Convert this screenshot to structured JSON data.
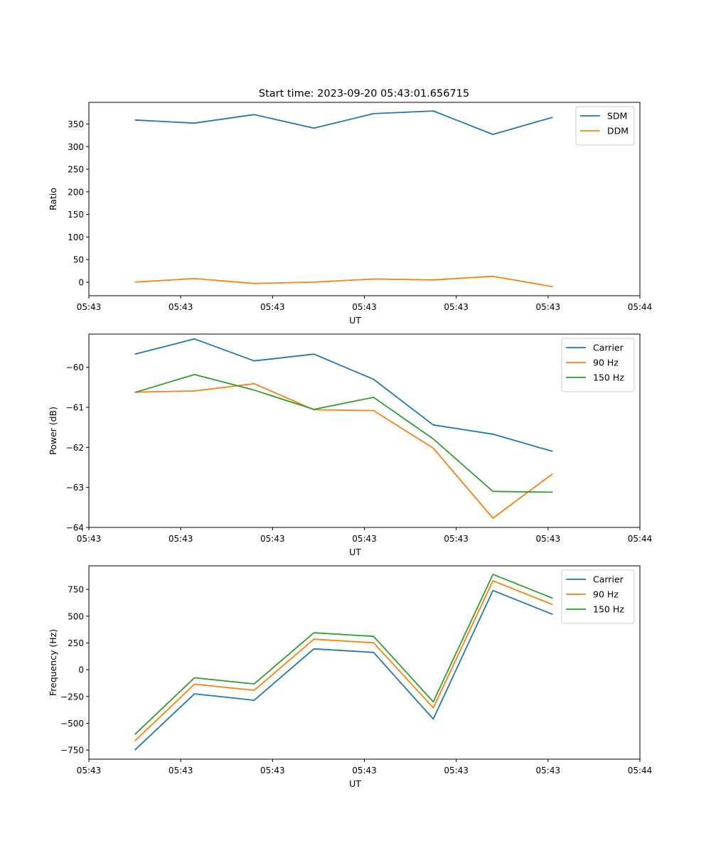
{
  "figure_title": "Start time: 2023-09-20 05:43:01.656715",
  "colors": {
    "blue": "#1f77b4",
    "orange": "#ff7f0e",
    "green": "#2ca02c"
  },
  "chart_data": [
    {
      "type": "line",
      "title": "Start time: 2023-09-20 05:43:01.656715",
      "xlabel": "UT",
      "ylabel": "Ratio",
      "xlim": [
        0,
        12
      ],
      "ylim": [
        -30,
        398
      ],
      "x_ticks": [
        0,
        2,
        4,
        6,
        8,
        10,
        12
      ],
      "x_tick_labels": [
        "05:43",
        "05:43",
        "05:43",
        "05:43",
        "05:43",
        "05:43",
        "05:44"
      ],
      "y_ticks": [
        0,
        50,
        100,
        150,
        200,
        250,
        300,
        350
      ],
      "y_tick_labels": [
        "0",
        "50",
        "100",
        "150",
        "200",
        "250",
        "300",
        "350"
      ],
      "legend_position": "top-right",
      "x": [
        1,
        2.3,
        3.6,
        4.9,
        6.2,
        7.5,
        8.8,
        10.1
      ],
      "series": [
        {
          "name": "SDM",
          "color": "#1f77b4",
          "values": [
            359,
            352,
            371,
            341,
            373,
            379,
            327,
            365
          ]
        },
        {
          "name": "DDM",
          "color": "#ff7f0e",
          "values": [
            0,
            8,
            -3,
            0,
            7,
            5,
            13,
            -10
          ]
        }
      ]
    },
    {
      "type": "line",
      "title": "",
      "xlabel": "UT",
      "ylabel": "Power (dB)",
      "xlim": [
        0,
        12
      ],
      "ylim": [
        -64,
        -59.17
      ],
      "x_ticks": [
        0,
        2,
        4,
        6,
        8,
        10,
        12
      ],
      "x_tick_labels": [
        "05:43",
        "05:43",
        "05:43",
        "05:43",
        "05:43",
        "05:43",
        "05:44"
      ],
      "y_ticks": [
        -64,
        -63,
        -62,
        -61,
        -60
      ],
      "y_tick_labels": [
        "−64",
        "−63",
        "−62",
        "−61",
        "−60"
      ],
      "legend_position": "top-right",
      "x": [
        1,
        2.3,
        3.6,
        4.9,
        6.2,
        7.5,
        8.8,
        10.1
      ],
      "series": [
        {
          "name": "Carrier",
          "color": "#1f77b4",
          "values": [
            -59.67,
            -59.29,
            -59.84,
            -59.67,
            -60.3,
            -61.44,
            -61.67,
            -62.1
          ]
        },
        {
          "name": "90 Hz",
          "color": "#ff7f0e",
          "values": [
            -60.62,
            -60.59,
            -60.41,
            -61.06,
            -61.08,
            -62.02,
            -63.77,
            -62.66
          ]
        },
        {
          "name": "150 Hz",
          "color": "#2ca02c",
          "values": [
            -60.63,
            -60.18,
            -60.57,
            -61.05,
            -60.75,
            -61.79,
            -63.1,
            -63.12
          ]
        }
      ]
    },
    {
      "type": "line",
      "title": "",
      "xlabel": "UT",
      "ylabel": "Frequency (Hz)",
      "xlim": [
        0,
        12
      ],
      "ylim": [
        -835,
        970
      ],
      "x_ticks": [
        0,
        2,
        4,
        6,
        8,
        10,
        12
      ],
      "x_tick_labels": [
        "05:43",
        "05:43",
        "05:43",
        "05:43",
        "05:43",
        "05:43",
        "05:44"
      ],
      "y_ticks": [
        -750,
        -500,
        -250,
        0,
        250,
        500,
        750
      ],
      "y_tick_labels": [
        "−750",
        "−500",
        "−250",
        "0",
        "250",
        "500",
        "750"
      ],
      "legend_position": "top-right",
      "x": [
        1,
        2.3,
        3.6,
        4.9,
        6.2,
        7.5,
        8.8,
        10.1
      ],
      "series": [
        {
          "name": "Carrier",
          "color": "#1f77b4",
          "values": [
            -750,
            -225,
            -285,
            195,
            162,
            -460,
            740,
            517
          ]
        },
        {
          "name": "90 Hz",
          "color": "#ff7f0e",
          "values": [
            -665,
            -135,
            -192,
            285,
            252,
            -355,
            830,
            608
          ]
        },
        {
          "name": "150 Hz",
          "color": "#2ca02c",
          "values": [
            -605,
            -75,
            -132,
            345,
            312,
            -300,
            890,
            668
          ]
        }
      ]
    }
  ]
}
